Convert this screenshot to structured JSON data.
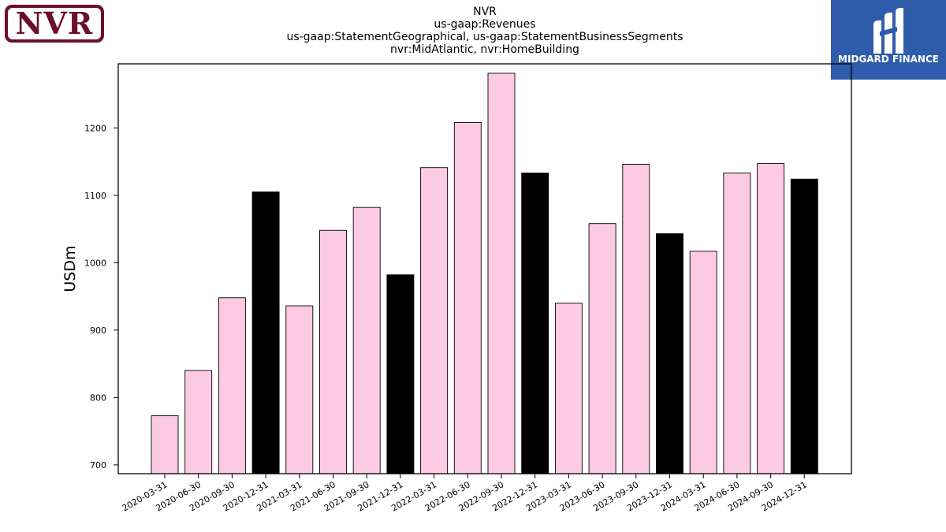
{
  "header": {
    "title_lines": [
      "NVR",
      "us-gaap:Revenues",
      "us-gaap:StatementGeographical, us-gaap:StatementBusinessSegments",
      "nvr:MidAtlantic, nvr:HomeBuilding"
    ]
  },
  "logos": {
    "left": {
      "text": "NVR",
      "color": "#6b0f2f"
    },
    "right": {
      "text": "MIDGARD FINANCE",
      "color": "#2f5caa"
    }
  },
  "chart_data": {
    "type": "bar",
    "title": "NVR\nus-gaap:Revenues\nus-gaap:StatementGeographical, us-gaap:StatementBusinessSegments\nnvr:MidAtlantic, nvr:HomeBuilding",
    "xlabel": "",
    "ylabel": "USDm",
    "categories": [
      "2020-03-31",
      "2020-06-30",
      "2020-09-30",
      "2020-12-31",
      "2021-03-31",
      "2021-06-30",
      "2021-09-30",
      "2021-12-31",
      "2022-03-31",
      "2022-06-30",
      "2022-09-30",
      "2022-12-31",
      "2023-03-31",
      "2023-06-30",
      "2023-09-30",
      "2023-12-31",
      "2024-03-31",
      "2024-06-30",
      "2024-09-30",
      "2024-12-31"
    ],
    "values": [
      773,
      840,
      948,
      1105,
      936,
      1048,
      1082,
      982,
      1141,
      1208,
      1281,
      1133,
      940,
      1058,
      1146,
      1043,
      1017,
      1133,
      1147,
      1124
    ],
    "year_end_color": "#000000",
    "quarter_color": "#fccae4",
    "ylim": [
      687,
      1295
    ],
    "yticks": [
      700,
      800,
      900,
      1000,
      1100,
      1200
    ],
    "grid": false,
    "legend": "none"
  }
}
